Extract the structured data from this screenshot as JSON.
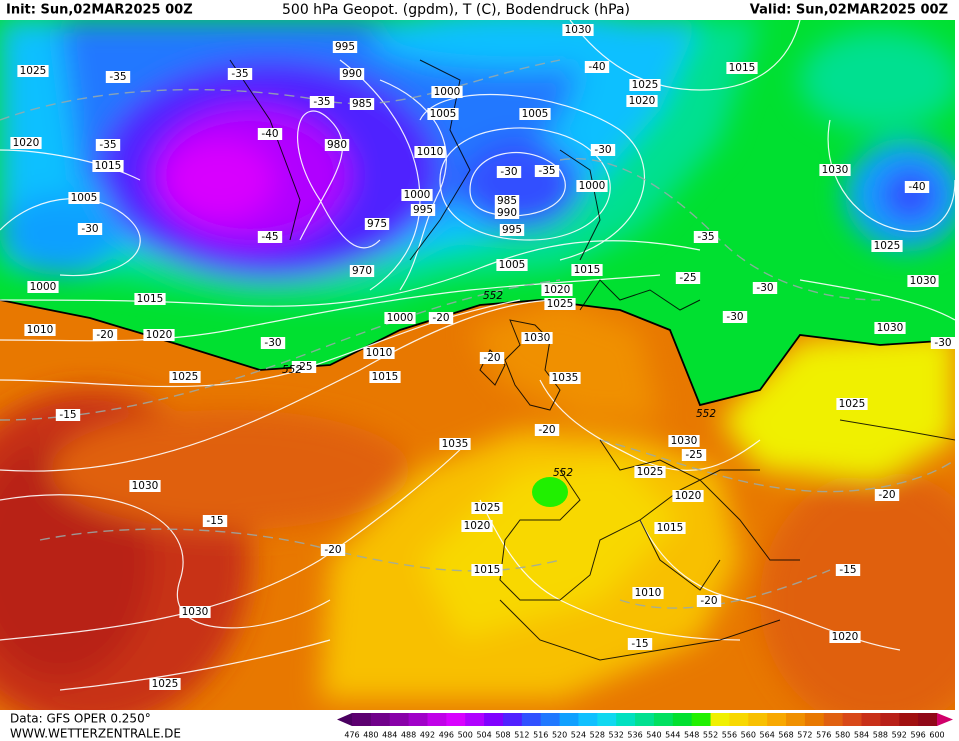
{
  "header": {
    "init": "Init: Sun,02MAR2025 00Z",
    "title": "500 hPa Geopot. (gpdm), T (C), Bodendruck (hPa)",
    "valid": "Valid: Sun,02MAR2025 00Z"
  },
  "footer": {
    "data_source": "Data: GFS OPER 0.250°",
    "website": "WWW.WETTERZENTRALE.DE"
  },
  "colorbar": {
    "ticks": [
      476,
      480,
      484,
      488,
      492,
      496,
      500,
      504,
      508,
      512,
      516,
      520,
      524,
      528,
      532,
      536,
      540,
      544,
      548,
      552,
      556,
      560,
      564,
      568,
      572,
      576,
      580,
      584,
      588,
      592,
      596,
      600
    ],
    "colors": [
      "#4a0060",
      "#5c0070",
      "#70008a",
      "#8800a8",
      "#a000c8",
      "#c000e8",
      "#d800ff",
      "#b000ff",
      "#8000ff",
      "#5020ff",
      "#3050ff",
      "#2078ff",
      "#10a0ff",
      "#10c0ff",
      "#10d8f0",
      "#00e0c0",
      "#00e090",
      "#00e060",
      "#00e030",
      "#20f000",
      "#f0f000",
      "#f8d800",
      "#f8c000",
      "#f8a800",
      "#f09000",
      "#e87800",
      "#e06010",
      "#d84818",
      "#c83018",
      "#b82018",
      "#a01010",
      "#900818",
      "#d0006a"
    ]
  },
  "isobar_labels": [
    "995",
    "990",
    "985",
    "980",
    "975",
    "970",
    "1000",
    "1005",
    "1010",
    "1000",
    "995",
    "1030",
    "1025",
    "1020",
    "1015",
    "1025",
    "1020",
    "1015",
    "1005",
    "1000",
    "1015",
    "1010",
    "1020",
    "1025",
    "1005",
    "1000",
    "985",
    "990",
    "995",
    "1005",
    "1015",
    "1020",
    "1025",
    "1000",
    "1010",
    "1015",
    "1030",
    "1035",
    "1035",
    "1030",
    "1025",
    "1020",
    "1025",
    "1020",
    "1015",
    "1015",
    "1010",
    "1030",
    "1030",
    "1025",
    "1030",
    "1025",
    "1030",
    "1030",
    "1025",
    "1020"
  ],
  "temperature_labels": [
    "-35",
    "-35",
    "-35",
    "-40",
    "-35",
    "-30",
    "-45",
    "-40",
    "-30",
    "-35",
    "-30",
    "-35",
    "-25",
    "-30",
    "-30",
    "-40",
    "-20",
    "-20",
    "-30",
    "-25",
    "-15",
    "-20",
    "-20",
    "-25",
    "-15",
    "-20",
    "-20",
    "-15",
    "-20",
    "-15",
    "-30"
  ],
  "height_labels": [
    "552",
    "552",
    "552",
    "552"
  ]
}
